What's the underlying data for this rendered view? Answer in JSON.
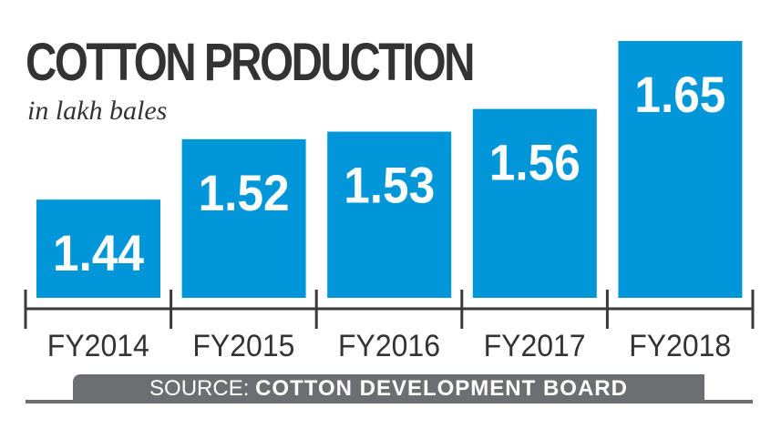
{
  "chart_data": {
    "type": "bar",
    "title": "COTTON PRODUCTION",
    "subtitle": "in lakh bales",
    "categories": [
      "FY2014",
      "FY2015",
      "FY2016",
      "FY2017",
      "FY2018"
    ],
    "values": [
      1.44,
      1.52,
      1.53,
      1.56,
      1.65
    ],
    "data_labels": [
      "1.44",
      "1.52",
      "1.53",
      "1.56",
      "1.65"
    ],
    "xlabel": "",
    "ylabel": "",
    "ylim": [
      1.31,
      1.67
    ],
    "grid": false,
    "bar_color": "#0096d8",
    "source_prefix": "SOURCE:",
    "source_name": "COTTON DEVELOPMENT BOARD"
  }
}
